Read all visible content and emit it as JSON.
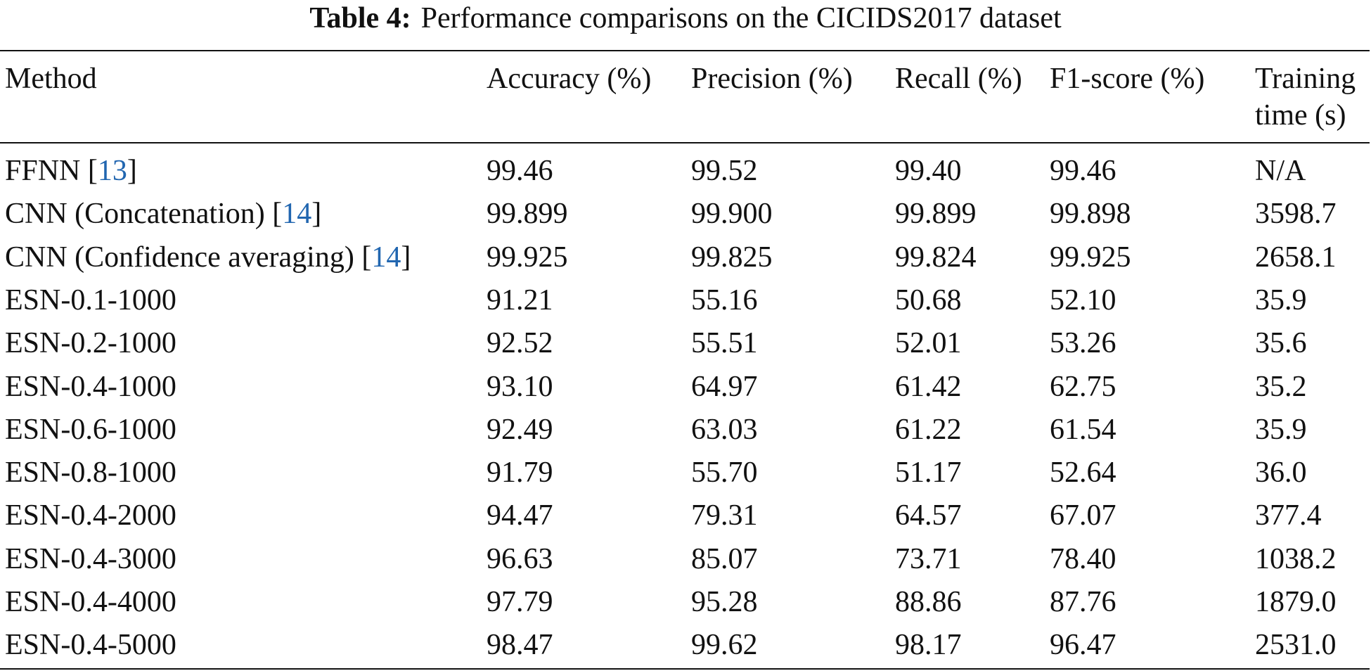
{
  "caption": {
    "label": "Table 4:",
    "text": "Performance comparisons on the CICIDS2017 dataset"
  },
  "table": {
    "header": [
      "Method",
      "Accuracy (%)",
      "Precision (%)",
      "Recall (%)",
      "F1-score (%)",
      "Training time (s)"
    ],
    "rows": [
      {
        "method": "FFNN",
        "cite": {
          "open": "[",
          "number": "13",
          "close": "]"
        },
        "cells": [
          "99.46",
          "99.52",
          "99.40",
          "99.46",
          "N/A"
        ]
      },
      {
        "method": "CNN (Concatenation)",
        "cite": {
          "open": "[",
          "number": "14",
          "close": "]"
        },
        "cells": [
          "99.899",
          "99.900",
          "99.899",
          "99.898",
          "3598.7"
        ]
      },
      {
        "method": "CNN (Confidence averaging)",
        "cite": {
          "open": "[",
          "number": "14",
          "close": "]"
        },
        "cells": [
          "99.925",
          "99.825",
          "99.824",
          "99.925",
          "2658.1"
        ]
      },
      {
        "method": "ESN-0.1-1000",
        "cells": [
          "91.21",
          "55.16",
          "50.68",
          "52.10",
          "35.9"
        ]
      },
      {
        "method": "ESN-0.2-1000",
        "cells": [
          "92.52",
          "55.51",
          "52.01",
          "53.26",
          "35.6"
        ]
      },
      {
        "method": "ESN-0.4-1000",
        "cells": [
          "93.10",
          "64.97",
          "61.42",
          "62.75",
          "35.2"
        ]
      },
      {
        "method": "ESN-0.6-1000",
        "cells": [
          "92.49",
          "63.03",
          "61.22",
          "61.54",
          "35.9"
        ]
      },
      {
        "method": "ESN-0.8-1000",
        "cells": [
          "91.79",
          "55.70",
          "51.17",
          "52.64",
          "36.0"
        ]
      },
      {
        "method": "ESN-0.4-2000",
        "cells": [
          "94.47",
          "79.31",
          "64.57",
          "67.07",
          "377.4"
        ]
      },
      {
        "method": "ESN-0.4-3000",
        "cells": [
          "96.63",
          "85.07",
          "73.71",
          "78.40",
          "1038.2"
        ]
      },
      {
        "method": "ESN-0.4-4000",
        "cells": [
          "97.79",
          "95.28",
          "88.86",
          "87.76",
          "1879.0"
        ]
      },
      {
        "method": "ESN-0.4-5000",
        "cells": [
          "98.47",
          "99.62",
          "98.17",
          "96.47",
          "2531.0"
        ]
      }
    ]
  }
}
